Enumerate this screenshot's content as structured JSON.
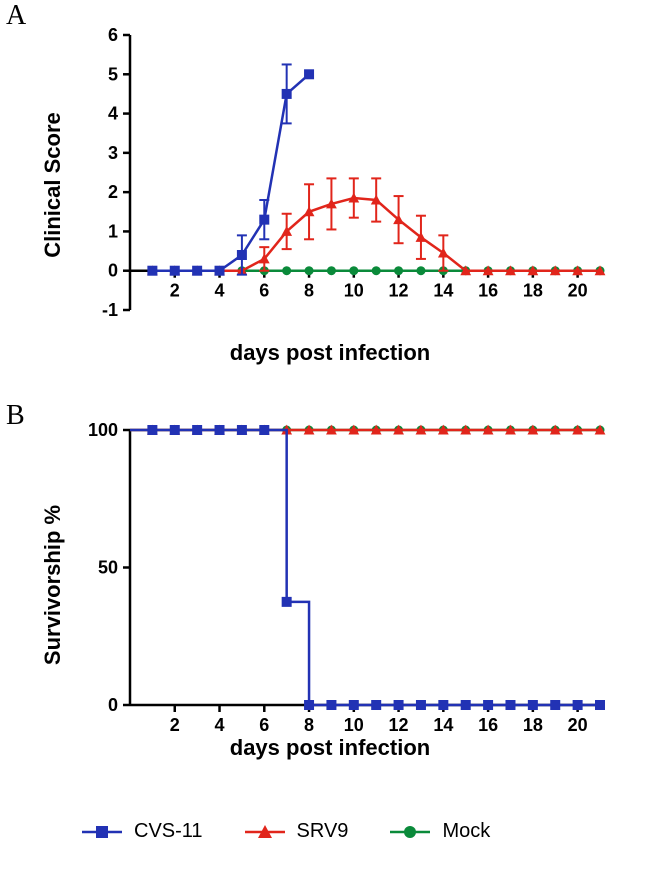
{
  "panelA": {
    "label": "A",
    "type": "line-errorbar",
    "x_label": "days post infection",
    "y_label": "Clinical Score",
    "title_fontsize": 22,
    "tick_fontsize": 18,
    "xlim": [
      0,
      21
    ],
    "ylim": [
      -1,
      6
    ],
    "xticks": [
      2,
      4,
      6,
      8,
      10,
      12,
      14,
      16,
      18,
      20
    ],
    "yticks": [
      -1,
      0,
      1,
      2,
      3,
      4,
      5,
      6
    ],
    "background_color": "#ffffff",
    "axis_color": "#000000",
    "axis_width": 2.5,
    "series": {
      "CVS11": {
        "color": "#2232b4",
        "marker": "square",
        "marker_size": 10,
        "line_width": 2.5,
        "x": [
          1,
          2,
          3,
          4,
          5,
          6,
          7,
          8
        ],
        "y": [
          0,
          0,
          0,
          0,
          0.4,
          1.3,
          4.5,
          5.0
        ],
        "err": [
          0,
          0,
          0,
          0,
          0.5,
          0.5,
          0.75,
          0
        ]
      },
      "SRV9": {
        "color": "#e1251b",
        "marker": "triangle",
        "marker_size": 10,
        "line_width": 2.5,
        "x": [
          1,
          2,
          3,
          4,
          5,
          6,
          7,
          8,
          9,
          10,
          11,
          12,
          13,
          14,
          15,
          16,
          17,
          18,
          19,
          20,
          21
        ],
        "y": [
          0,
          0,
          0,
          0,
          0,
          0.3,
          1.0,
          1.5,
          1.7,
          1.85,
          1.8,
          1.3,
          0.85,
          0.45,
          0,
          0,
          0,
          0,
          0,
          0,
          0
        ],
        "err": [
          0,
          0,
          0,
          0,
          0,
          0.3,
          0.45,
          0.7,
          0.65,
          0.5,
          0.55,
          0.6,
          0.55,
          0.45,
          0,
          0,
          0,
          0,
          0,
          0,
          0
        ]
      },
      "Mock": {
        "color": "#0a8a3a",
        "marker": "circle",
        "marker_size": 9,
        "line_width": 2.5,
        "x": [
          1,
          2,
          3,
          4,
          5,
          6,
          7,
          8,
          9,
          10,
          11,
          12,
          13,
          14,
          15,
          16,
          17,
          18,
          19,
          20,
          21
        ],
        "y": [
          0,
          0,
          0,
          0,
          0,
          0,
          0,
          0,
          0,
          0,
          0,
          0,
          0,
          0,
          0,
          0,
          0,
          0,
          0,
          0,
          0
        ],
        "err": [
          0,
          0,
          0,
          0,
          0,
          0,
          0,
          0,
          0,
          0,
          0,
          0,
          0,
          0,
          0,
          0,
          0,
          0,
          0,
          0,
          0
        ]
      }
    }
  },
  "panelB": {
    "label": "B",
    "type": "step-survival",
    "x_label": "days post infection",
    "y_label": "Survivorship %",
    "title_fontsize": 22,
    "tick_fontsize": 18,
    "xlim": [
      0,
      21
    ],
    "ylim": [
      0,
      100
    ],
    "xticks": [
      2,
      4,
      6,
      8,
      10,
      12,
      14,
      16,
      18,
      20
    ],
    "yticks": [
      0,
      50,
      100
    ],
    "background_color": "#ffffff",
    "axis_color": "#000000",
    "axis_width": 2.5,
    "series": {
      "CVS11": {
        "color": "#2232b4",
        "marker": "square",
        "marker_size": 10,
        "line_width": 2.5,
        "tick_len": 8,
        "x": [
          1,
          2,
          3,
          4,
          5,
          6,
          7,
          8,
          9,
          10,
          11,
          12,
          13,
          14,
          15,
          16,
          17,
          18,
          19,
          20,
          21
        ],
        "y": [
          100,
          100,
          100,
          100,
          100,
          100,
          37.5,
          0,
          0,
          0,
          0,
          0,
          0,
          0,
          0,
          0,
          0,
          0,
          0,
          0,
          0
        ],
        "drops": [
          [
            6,
            100,
            37.5
          ],
          [
            7,
            37.5,
            0
          ]
        ]
      },
      "SRV9": {
        "color": "#e1251b",
        "marker": "triangle",
        "marker_size": 10,
        "line_width": 2.5,
        "tick_len": 8,
        "x": [
          1,
          2,
          3,
          4,
          5,
          6,
          7,
          8,
          9,
          10,
          11,
          12,
          13,
          14,
          15,
          16,
          17,
          18,
          19,
          20,
          21
        ],
        "y": [
          100,
          100,
          100,
          100,
          100,
          100,
          100,
          100,
          100,
          100,
          100,
          100,
          100,
          100,
          100,
          100,
          100,
          100,
          100,
          100,
          100
        ]
      },
      "Mock": {
        "color": "#0a8a3a",
        "marker": "circle",
        "marker_size": 9,
        "line_width": 2.5,
        "tick_len": 8,
        "x": [
          1,
          2,
          3,
          4,
          5,
          6,
          7,
          8,
          9,
          10,
          11,
          12,
          13,
          14,
          15,
          16,
          17,
          18,
          19,
          20,
          21
        ],
        "y": [
          100,
          100,
          100,
          100,
          100,
          100,
          100,
          100,
          100,
          100,
          100,
          100,
          100,
          100,
          100,
          100,
          100,
          100,
          100,
          100,
          100
        ]
      }
    }
  },
  "legend": {
    "items": [
      {
        "key": "CVS11",
        "label": "CVS-11",
        "color": "#2232b4",
        "marker": "square"
      },
      {
        "key": "SRV9",
        "label": "SRV9",
        "color": "#e1251b",
        "marker": "triangle"
      },
      {
        "key": "Mock",
        "label": "Mock",
        "color": "#0a8a3a",
        "marker": "circle"
      }
    ],
    "fontsize": 20
  }
}
